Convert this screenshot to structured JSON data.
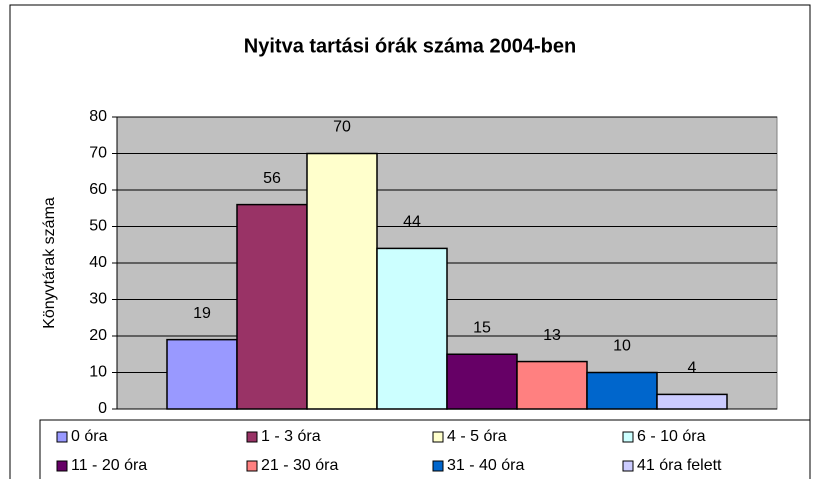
{
  "chart_data": {
    "type": "bar",
    "title": "Nyitva tartási órák száma 2004-ben",
    "y_label": "Könyvtárak száma",
    "series": [
      {
        "name": "0 óra",
        "color": "#9999ff",
        "values": [
          19
        ]
      },
      {
        "name": "1 - 3 óra",
        "color": "#993366",
        "values": [
          56
        ]
      },
      {
        "name": "4 - 5 óra",
        "color": "#ffffcc",
        "values": [
          70
        ]
      },
      {
        "name": "6 - 10 óra",
        "color": "#ccffff",
        "values": [
          44
        ]
      },
      {
        "name": "11 - 20 óra",
        "color": "#660066",
        "values": [
          15
        ]
      },
      {
        "name": "21 - 30 óra",
        "color": "#ff8080",
        "values": [
          13
        ]
      },
      {
        "name": "31 - 40 óra",
        "color": "#0066cc",
        "values": [
          10
        ]
      },
      {
        "name": "41 óra felett",
        "color": "#ccccff",
        "values": [
          4
        ]
      }
    ],
    "ylim": [
      0,
      80
    ],
    "yticks": [
      0,
      10,
      20,
      30,
      40,
      50,
      60,
      70,
      80
    ],
    "grid": true,
    "plot_color": "#c0c0c0",
    "legend": "bottom"
  }
}
